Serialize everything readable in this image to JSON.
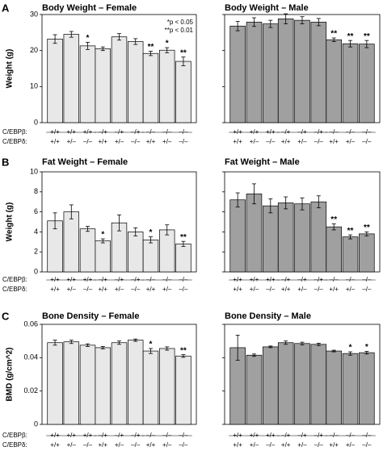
{
  "chart_data": [
    {
      "type": "bar",
      "panel": "A",
      "title": "Body Weight – Female",
      "ylabel": "Weight (g)",
      "annotations": [
        "*p < 0.05",
        "**p < 0.01"
      ],
      "genotype_labels": [
        "C/EBPβ:",
        "C/EBPδ:"
      ],
      "categories": [
        [
          "+/+",
          "+/+"
        ],
        [
          "+/+",
          "+/–"
        ],
        [
          "+/+",
          "–/–"
        ],
        [
          "–/+",
          "+/+"
        ],
        [
          "–/+",
          "+/–"
        ],
        [
          "–/+",
          "–/–"
        ],
        [
          "–/–",
          "+/+"
        ],
        [
          "–/–",
          "+/–"
        ],
        [
          "–/–",
          "–/–"
        ]
      ],
      "values": [
        23.2,
        24.5,
        21.3,
        20.5,
        23.8,
        22.5,
        19.2,
        20.1,
        17.0
      ],
      "errors": [
        1.2,
        0.8,
        1.0,
        0.5,
        0.9,
        0.8,
        0.6,
        0.7,
        1.2
      ],
      "significance": [
        null,
        null,
        "*",
        null,
        null,
        null,
        "**",
        "*",
        "**"
      ],
      "color": "#e8e8e8",
      "ylim": [
        0,
        30
      ],
      "yticks": [
        0,
        10,
        20,
        30
      ]
    },
    {
      "type": "bar",
      "title": "Body Weight – Male",
      "categories": [
        [
          "+/+",
          "+/+"
        ],
        [
          "+/+",
          "+/–"
        ],
        [
          "+/+",
          "–/–"
        ],
        [
          "–/+",
          "+/+"
        ],
        [
          "–/+",
          "+/–"
        ],
        [
          "–/+",
          "–/–"
        ],
        [
          "–/–",
          "+/+"
        ],
        [
          "–/–",
          "+/–"
        ],
        [
          "–/–",
          "–/–"
        ]
      ],
      "values": [
        26.8,
        27.9,
        27.4,
        28.8,
        28.4,
        27.9,
        23.0,
        21.9,
        21.8
      ],
      "errors": [
        1.3,
        1.2,
        1.0,
        1.4,
        1.0,
        1.0,
        0.5,
        0.9,
        1.0
      ],
      "significance": [
        null,
        null,
        null,
        null,
        null,
        null,
        "**",
        "**",
        "**"
      ],
      "color": "#a0a0a0",
      "ylim": [
        0,
        30
      ],
      "yticks": [
        0,
        10,
        20,
        30
      ]
    },
    {
      "type": "bar",
      "panel": "B",
      "title": "Fat Weight – Female",
      "ylabel": "Weight (g)",
      "genotype_labels": [
        "C/EBPβ:",
        "C/EBPδ:"
      ],
      "categories": [
        [
          "+/+",
          "+/+"
        ],
        [
          "+/+",
          "+/–"
        ],
        [
          "+/+",
          "–/–"
        ],
        [
          "–/+",
          "+/+"
        ],
        [
          "–/+",
          "+/–"
        ],
        [
          "–/+",
          "–/–"
        ],
        [
          "–/–",
          "+/+"
        ],
        [
          "–/–",
          "+/–"
        ],
        [
          "–/–",
          "–/–"
        ]
      ],
      "values": [
        5.1,
        6.0,
        4.3,
        3.1,
        4.9,
        4.0,
        3.2,
        4.2,
        2.8
      ],
      "errors": [
        0.8,
        0.7,
        0.25,
        0.2,
        0.8,
        0.4,
        0.3,
        0.5,
        0.25
      ],
      "significance": [
        null,
        null,
        null,
        "*",
        null,
        null,
        "*",
        null,
        "**"
      ],
      "color": "#e8e8e8",
      "ylim": [
        0,
        10
      ],
      "yticks": [
        0,
        2,
        4,
        6,
        8,
        10
      ]
    },
    {
      "type": "bar",
      "title": "Fat Weight – Male",
      "categories": [
        [
          "+/+",
          "+/+"
        ],
        [
          "+/+",
          "+/–"
        ],
        [
          "+/+",
          "–/–"
        ],
        [
          "–/+",
          "+/+"
        ],
        [
          "–/+",
          "+/–"
        ],
        [
          "–/+",
          "–/–"
        ],
        [
          "–/–",
          "+/+"
        ],
        [
          "–/–",
          "+/–"
        ],
        [
          "–/–",
          "–/–"
        ]
      ],
      "values": [
        7.2,
        7.8,
        6.6,
        6.9,
        6.8,
        7.0,
        4.5,
        3.5,
        3.8
      ],
      "errors": [
        0.7,
        1.0,
        0.7,
        0.6,
        0.6,
        0.6,
        0.3,
        0.2,
        0.2
      ],
      "significance": [
        null,
        null,
        null,
        null,
        null,
        null,
        "**",
        "**",
        "**"
      ],
      "color": "#a0a0a0",
      "ylim": [
        0,
        10
      ],
      "yticks": [
        0,
        2,
        4,
        6,
        8,
        10
      ]
    },
    {
      "type": "bar",
      "panel": "C",
      "title": "Bone Density – Female",
      "ylabel": "BMD (g/cm^2)",
      "genotype_labels": [
        "C/EBPβ:",
        "C/EBPδ:"
      ],
      "categories": [
        [
          "+/+",
          "+/+"
        ],
        [
          "+/+",
          "+/–"
        ],
        [
          "+/+",
          "–/–"
        ],
        [
          "–/+",
          "+/+"
        ],
        [
          "–/+",
          "+/–"
        ],
        [
          "–/+",
          "–/–"
        ],
        [
          "–/–",
          "+/+"
        ],
        [
          "–/–",
          "+/–"
        ],
        [
          "–/–",
          "–/–"
        ]
      ],
      "values": [
        0.049,
        0.0495,
        0.0475,
        0.046,
        0.049,
        0.0505,
        0.044,
        0.0455,
        0.041
      ],
      "errors": [
        0.0015,
        0.001,
        0.0008,
        0.0007,
        0.001,
        0.0007,
        0.0015,
        0.001,
        0.0008
      ],
      "significance": [
        null,
        null,
        null,
        null,
        null,
        null,
        "*",
        null,
        "**"
      ],
      "color": "#e8e8e8",
      "ylim": [
        0,
        0.06
      ],
      "yticks": [
        0,
        0.02,
        0.04,
        0.06
      ]
    },
    {
      "type": "bar",
      "title": "Bone Density – Male",
      "categories": [
        [
          "+/+",
          "+/+"
        ],
        [
          "+/+",
          "+/–"
        ],
        [
          "+/+",
          "–/–"
        ],
        [
          "–/+",
          "+/+"
        ],
        [
          "–/+",
          "+/–"
        ],
        [
          "–/+",
          "–/–"
        ],
        [
          "–/–",
          "+/+"
        ],
        [
          "–/–",
          "+/–"
        ],
        [
          "–/–",
          "–/–"
        ]
      ],
      "values": [
        0.046,
        0.0415,
        0.0465,
        0.049,
        0.0485,
        0.048,
        0.044,
        0.0425,
        0.043
      ],
      "errors": [
        0.0075,
        0.0007,
        0.0005,
        0.001,
        0.0008,
        0.0007,
        0.0005,
        0.001,
        0.0008
      ],
      "significance": [
        null,
        null,
        null,
        null,
        null,
        null,
        null,
        "*",
        "*"
      ],
      "color": "#a0a0a0",
      "ylim": [
        0,
        0.06
      ],
      "yticks": [
        0,
        0.02,
        0.04,
        0.06
      ]
    }
  ]
}
